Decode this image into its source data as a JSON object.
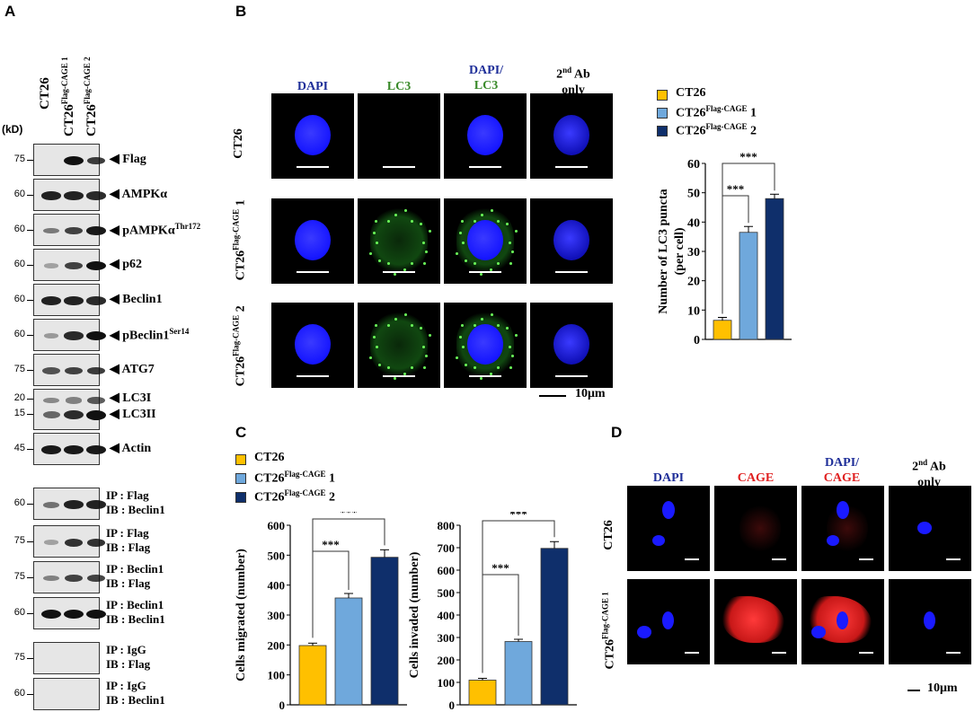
{
  "panels": {
    "a": "A",
    "b": "B",
    "c": "C",
    "d": "D"
  },
  "western": {
    "kd_label": "(kD)",
    "lanes": [
      "CT26",
      "CT26",
      "CT26"
    ],
    "lane_sup": [
      "",
      "Flag-CAGE 1",
      "Flag-CAGE 2"
    ],
    "blots": [
      {
        "label": "Flag",
        "sup": "",
        "mw": [
          "75"
        ]
      },
      {
        "label": "AMPKα",
        "sup": "",
        "mw": [
          "60"
        ]
      },
      {
        "label": "pAMPKα",
        "sup": "Thr172",
        "mw": [
          "60"
        ]
      },
      {
        "label": "p62",
        "sup": "",
        "mw": [
          "60"
        ]
      },
      {
        "label": "Beclin1",
        "sup": "",
        "mw": [
          "60"
        ]
      },
      {
        "label": "pBeclin1",
        "sup": "Ser14",
        "mw": [
          "60"
        ]
      },
      {
        "label": "ATG7",
        "sup": "",
        "mw": [
          "75"
        ]
      },
      {
        "label": "LC3I",
        "label2": "LC3II",
        "sup": "",
        "mw": [
          "20",
          "15"
        ]
      },
      {
        "label": "Actin",
        "sup": "",
        "mw": [
          "45"
        ]
      }
    ],
    "ip_blots": [
      {
        "ip": "IP : Flag",
        "ib": "IB : Beclin1",
        "mw": "60"
      },
      {
        "ip": "IP : Flag",
        "ib": "IB : Flag",
        "mw": "75"
      },
      {
        "ip": "IP : Beclin1",
        "ib": "IB : Flag",
        "mw": "75"
      },
      {
        "ip": "IP : Beclin1",
        "ib": "IB : Beclin1",
        "mw": "60"
      },
      {
        "ip": "IP : IgG",
        "ib": "IB : Flag",
        "mw": "75"
      },
      {
        "ip": "IP : IgG",
        "ib": "IB : Beclin1",
        "mw": "60"
      }
    ]
  },
  "panel_b": {
    "cols": [
      "DAPI",
      "LC3",
      "DAPI/",
      "LC3",
      "2nd Ab",
      "only"
    ],
    "col_sup": "nd",
    "rows": [
      "CT26",
      "CT26",
      "1",
      "CT26",
      "2"
    ],
    "row_sup": "Flag-CAGE",
    "scalebar": "10μm"
  },
  "panel_d": {
    "cols": [
      "DAPI",
      "CAGE",
      "DAPI/",
      "CAGE",
      "2nd Ab",
      "only"
    ],
    "rows": [
      "CT26",
      "CT26",
      "Flag-CAGE 1"
    ],
    "scalebar": "10μm"
  },
  "legend": {
    "items": [
      {
        "name": "CT26",
        "sup": "",
        "suffix": "",
        "color": "#FFC000"
      },
      {
        "name": "CT26",
        "sup": "Flag-CAGE",
        "suffix": " 1",
        "color": "#6FA8DC"
      },
      {
        "name": "CT26",
        "sup": "Flag-CAGE",
        "suffix": " 2",
        "color": "#0F2F6B"
      }
    ]
  },
  "sig": "***",
  "chart_data": [
    {
      "type": "bar",
      "categories": [
        "CT26",
        "CT26Flag-CAGE 1",
        "CT26Flag-CAGE 2"
      ],
      "values": [
        6.5,
        36.5,
        48
      ],
      "errors": [
        1,
        2,
        1.5
      ],
      "ylabel": "Number of LC3 puncta",
      "ylabel2": "(per cell)",
      "ylim": [
        0,
        60
      ],
      "yticks": [
        "0",
        "10",
        "20",
        "30",
        "40",
        "50",
        "60"
      ]
    },
    {
      "type": "bar",
      "categories": [
        "CT26",
        "CT26Flag-CAGE 1",
        "CT26Flag-CAGE 2"
      ],
      "values": [
        198,
        357,
        493
      ],
      "errors": [
        8,
        15,
        25
      ],
      "ylabel": "Cells migrated (number)",
      "ylim": [
        0,
        600
      ],
      "yticks": [
        "0",
        "100",
        "200",
        "300",
        "400",
        "500",
        "600"
      ]
    },
    {
      "type": "bar",
      "categories": [
        "CT26",
        "CT26Flag-CAGE 1",
        "CT26Flag-CAGE 2"
      ],
      "values": [
        110,
        282,
        697
      ],
      "errors": [
        8,
        10,
        30
      ],
      "ylabel": "Cells invaded (number)",
      "ylim": [
        0,
        800
      ],
      "yticks": [
        "0",
        "100",
        "200",
        "300",
        "400",
        "500",
        "600",
        "700",
        "800"
      ]
    }
  ]
}
